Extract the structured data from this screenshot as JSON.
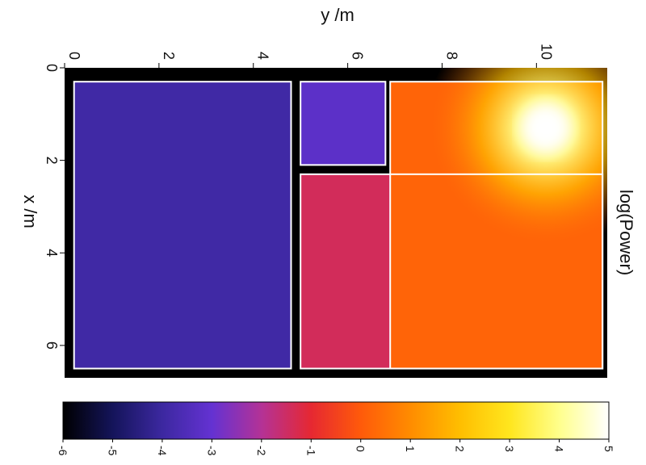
{
  "chart_data": {
    "type": "heatmap",
    "title": "",
    "xlabel": "x /m",
    "ylabel": "y /m",
    "colorbar_label": "log(Power)",
    "x_ticks": [
      0,
      2,
      4,
      6
    ],
    "x_tick_labels": [
      "0",
      "2",
      "4",
      "6"
    ],
    "y_ticks": [
      0,
      2,
      4,
      6,
      8,
      10
    ],
    "y_tick_labels": [
      "0",
      "2",
      "4",
      "6",
      "8",
      "10"
    ],
    "xlim": [
      0,
      6.7
    ],
    "ylim": [
      0,
      11.5
    ],
    "colorbar_ticks": [
      -6,
      -5,
      -4,
      -3,
      -2,
      -1,
      0,
      1,
      2,
      3,
      4,
      5
    ],
    "colorbar_tick_labels": [
      "-6",
      "-5",
      "-4",
      "-3",
      "-2",
      "-1",
      "0",
      "1",
      "2",
      "3",
      "4",
      "5"
    ],
    "colorbar_range": [
      -6,
      5
    ],
    "colormap": "hot-purple",
    "colormap_stops": [
      {
        "value": -6,
        "color": "#000000"
      },
      {
        "value": -5,
        "color": "#14145a"
      },
      {
        "value": -4,
        "color": "#3c28a0"
      },
      {
        "value": -3,
        "color": "#6432d2"
      },
      {
        "value": -2,
        "color": "#b43296"
      },
      {
        "value": -1,
        "color": "#e62832"
      },
      {
        "value": 0,
        "color": "#ff5a0a"
      },
      {
        "value": 1,
        "color": "#ff8c00"
      },
      {
        "value": 2,
        "color": "#ffbe00"
      },
      {
        "value": 3,
        "color": "#ffe61e"
      },
      {
        "value": 4,
        "color": "#ffff8c"
      },
      {
        "value": 5,
        "color": "#ffffff"
      }
    ],
    "source": {
      "x": 1.3,
      "y": 10.2,
      "value": 5
    },
    "background_color": "#000000",
    "wall_color": "#ffffff",
    "rooms": [
      {
        "x0": 0.3,
        "x1": 6.5,
        "y0": 0.2,
        "y1": 4.8,
        "value": -3.9
      },
      {
        "x0": 0.3,
        "x1": 2.1,
        "y0": 5.0,
        "y1": 6.8,
        "value": -3.2
      },
      {
        "x0": 2.3,
        "x1": 6.5,
        "y0": 5.0,
        "y1": 11.4,
        "value": -1.4
      },
      {
        "x0": 0.3,
        "x1": 6.5,
        "y0": 6.9,
        "y1": 11.4,
        "value": 0.2
      }
    ],
    "grid": false
  }
}
